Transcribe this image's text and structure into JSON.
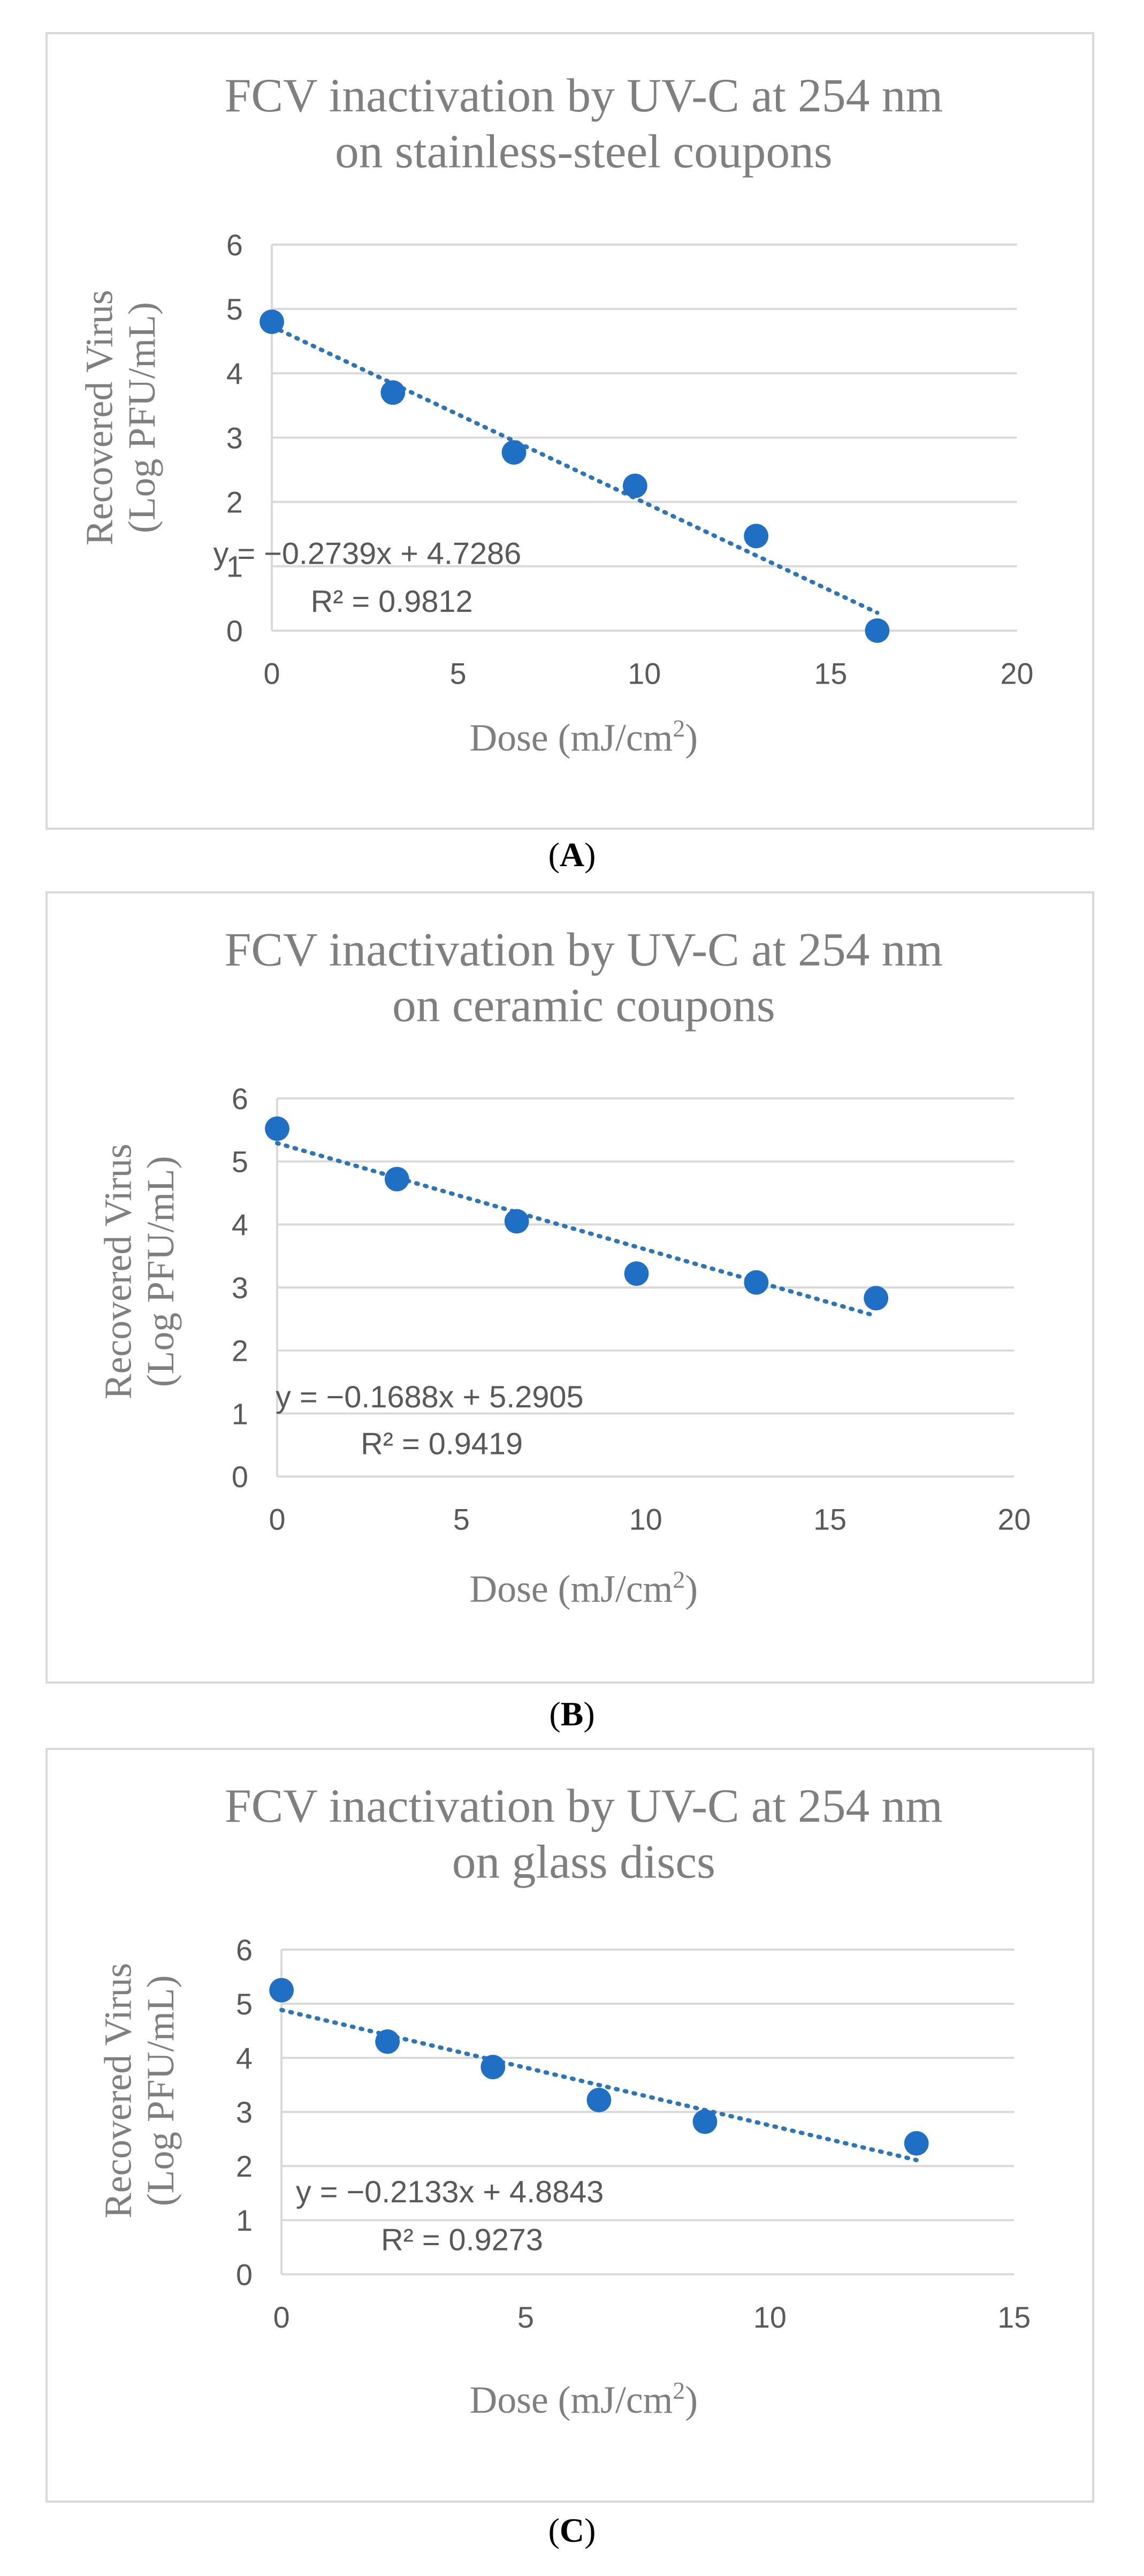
{
  "colors": {
    "marker": "#1f6fc5",
    "trendline": "#2e75b6",
    "grid": "#d9d9d9",
    "text": "#7f7f7f",
    "tick": "#595959"
  },
  "chart_data": [
    {
      "type": "scatter",
      "title_line1": "FCV inactivation by UV-C at 254 nm",
      "title_line2": "on stainless-steel coupons",
      "xlabel": "Dose (mJ/cm",
      "xlabel_sup": "2",
      "xlabel_close": ")",
      "ylabel_line1": "Recovered Virus",
      "ylabel_line2": "(Log PFU/mL)",
      "xlim": [
        0,
        20
      ],
      "ylim": [
        0,
        6
      ],
      "xticks": [
        0,
        5,
        10,
        15,
        20
      ],
      "yticks": [
        0,
        1,
        2,
        3,
        4,
        5,
        6
      ],
      "x": [
        0,
        3.25,
        6.5,
        9.75,
        13,
        16.25
      ],
      "y": [
        4.8,
        3.7,
        2.77,
        2.25,
        1.47,
        0
      ],
      "trendline": {
        "slope": -0.2739,
        "intercept": 4.7286,
        "x_range": [
          0,
          16.25
        ]
      },
      "equation": "y = −0.2739x + 4.7286",
      "r2": "R² = 0.9812",
      "caption_letter": "A"
    },
    {
      "type": "scatter",
      "title_line1": "FCV inactivation by UV-C at 254 nm",
      "title_line2": "on ceramic coupons",
      "xlabel": "Dose (mJ/cm",
      "xlabel_sup": "2",
      "xlabel_close": ")",
      "ylabel_line1": "Recovered Virus",
      "ylabel_line2": "(Log PFU/mL)",
      "xlim": [
        0,
        20
      ],
      "ylim": [
        0,
        6
      ],
      "xticks": [
        0,
        5,
        10,
        15,
        20
      ],
      "yticks": [
        0,
        1,
        2,
        3,
        4,
        5,
        6
      ],
      "x": [
        0,
        3.25,
        6.5,
        9.75,
        13,
        16.25
      ],
      "y": [
        5.52,
        4.72,
        4.05,
        3.22,
        3.08,
        2.83
      ],
      "trendline": {
        "slope": -0.1688,
        "intercept": 5.2905,
        "x_range": [
          0,
          16.25
        ]
      },
      "equation": "y = −0.1688x + 5.2905",
      "r2": "R² = 0.9419",
      "caption_letter": "B"
    },
    {
      "type": "scatter",
      "title_line1": "FCV inactivation by UV-C at 254 nm",
      "title_line2": "on glass discs",
      "xlabel": "Dose (mJ/cm",
      "xlabel_sup": "2",
      "xlabel_close": ")",
      "ylabel_line1": "Recovered Virus",
      "ylabel_line2": "(Log  PFU/mL)",
      "xlim": [
        0,
        15
      ],
      "ylim": [
        0,
        6
      ],
      "xticks": [
        0,
        5,
        10,
        15
      ],
      "yticks": [
        0,
        1,
        2,
        3,
        4,
        5,
        6
      ],
      "x": [
        0,
        2.17,
        4.33,
        6.5,
        8.67,
        13
      ],
      "y": [
        5.25,
        4.3,
        3.83,
        3.22,
        2.82,
        2.42
      ],
      "trendline": {
        "slope": -0.2133,
        "intercept": 4.8843,
        "x_range": [
          0,
          13
        ]
      },
      "equation": "y = −0.2133x + 4.8843",
      "r2": "R² = 0.9273",
      "caption_letter": "C"
    }
  ]
}
